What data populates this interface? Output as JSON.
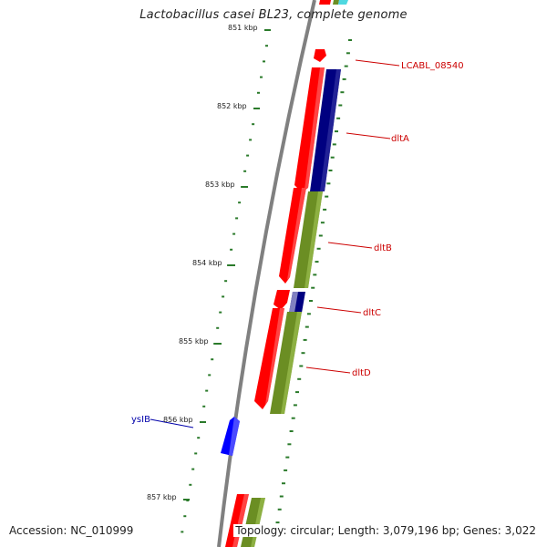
{
  "title": "Lactobacillus casei BL23, complete genome",
  "accession": "Accession: NC_010999",
  "topology": "Topology: circular; Length: 3,079,196 bp; Genes: 3,022",
  "colors": {
    "backbone": "#808080",
    "tick": "#2a7a2a",
    "gene_forward": "#ff0000",
    "gene_reverse": "#0000ff",
    "cog_navy": "#000080",
    "cog_olive": "#6b8e23",
    "label_forward": "#cc0000",
    "label_reverse": "#0000aa"
  },
  "scale_labels": [
    "851 kbp",
    "852 kbp",
    "853 kbp",
    "854 kbp",
    "855 kbp",
    "856 kbp",
    "857 kbp"
  ],
  "genes": [
    {
      "label": "LCABL_08540",
      "color": "label_forward"
    },
    {
      "label": "dltA",
      "color": "label_forward"
    },
    {
      "label": "dltB",
      "color": "label_forward"
    },
    {
      "label": "dltC",
      "color": "label_forward"
    },
    {
      "label": "dltD",
      "color": "label_forward"
    },
    {
      "label": "ysIB",
      "color": "label_reverse"
    }
  ]
}
